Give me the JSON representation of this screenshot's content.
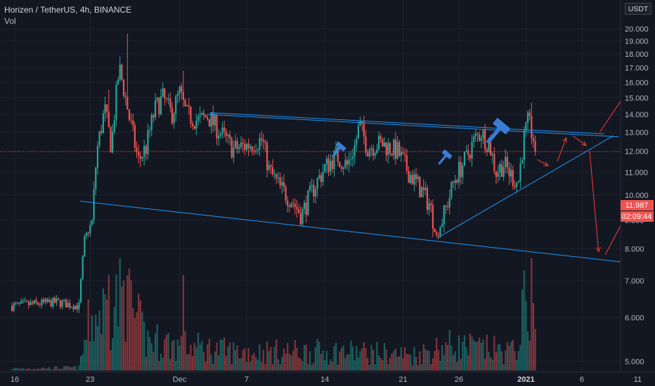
{
  "header": {
    "title": "Horizen / TetherUS, 4h, BINANCE",
    "volume_label": "Vol",
    "currency_button": "USDT"
  },
  "price_tags": {
    "last_price": "11.987",
    "countdown": "02:09:44"
  },
  "colors": {
    "up": "#26a69a",
    "down": "#ef5350",
    "trendline": "#2196f3",
    "arrow": "#e53935",
    "hammer": "#3a7dd6"
  },
  "annotations": {
    "hammer_icons": [
      "hammer-icon",
      "hammer-icon",
      "hammer-icon"
    ]
  },
  "chart_data": {
    "type": "candlestick",
    "title": "Horizen / TetherUS, 4h, BINANCE",
    "ylim": [
      4.6,
      21.3
    ],
    "y_ticks": [
      5,
      6,
      7,
      8,
      9,
      10,
      11,
      12,
      13,
      14,
      15,
      16,
      17,
      18,
      19,
      20
    ],
    "y_tick_labels": [
      "5.000",
      "6.000",
      "7.000",
      "8.000",
      "9.000",
      "10.000",
      "11.000",
      "12.000",
      "13.000",
      "14.000",
      "15.000",
      "16.000",
      "17.000",
      "18.000",
      "19.000",
      "20.000"
    ],
    "x_ticks": [
      {
        "label": "16",
        "day": 0
      },
      {
        "label": "23",
        "day": 7
      },
      {
        "label": "Dec",
        "day": 15
      },
      {
        "label": "7",
        "day": 21
      },
      {
        "label": "14",
        "day": 28
      },
      {
        "label": "21",
        "day": 35
      },
      {
        "label": "26",
        "day": 40
      },
      {
        "label": "2021",
        "day": 46,
        "bold": true
      },
      {
        "label": "6",
        "day": 51
      },
      {
        "label": "11",
        "day": 56
      }
    ],
    "price_waypoints": [
      {
        "day": 0,
        "price": 6.3
      },
      {
        "day": 4,
        "price": 6.4
      },
      {
        "day": 6,
        "price": 6.3
      },
      {
        "day": 6.5,
        "price": 8.3
      },
      {
        "day": 7.2,
        "price": 9.0
      },
      {
        "day": 7.6,
        "price": 12.0
      },
      {
        "day": 8.3,
        "price": 14.3
      },
      {
        "day": 8.9,
        "price": 12.2
      },
      {
        "day": 9.6,
        "price": 17.0
      },
      {
        "day": 10.5,
        "price": 13.8
      },
      {
        "day": 11.3,
        "price": 11.5
      },
      {
        "day": 12.0,
        "price": 12.2
      },
      {
        "day": 12.8,
        "price": 14.3
      },
      {
        "day": 13.5,
        "price": 15.0
      },
      {
        "day": 14.3,
        "price": 14.0
      },
      {
        "day": 15.0,
        "price": 15.3
      },
      {
        "day": 15.6,
        "price": 14.0
      },
      {
        "day": 16.7,
        "price": 13.6
      },
      {
        "day": 17.5,
        "price": 13.9
      },
      {
        "day": 18.6,
        "price": 13.0
      },
      {
        "day": 19.8,
        "price": 12.1
      },
      {
        "day": 21.0,
        "price": 12.3
      },
      {
        "day": 22.4,
        "price": 12.6
      },
      {
        "day": 23.0,
        "price": 11.1
      },
      {
        "day": 24.0,
        "price": 10.3
      },
      {
        "day": 25.0,
        "price": 9.8
      },
      {
        "day": 25.9,
        "price": 9.2
      },
      {
        "day": 27.0,
        "price": 10.3
      },
      {
        "day": 28.0,
        "price": 11.2
      },
      {
        "day": 29.0,
        "price": 11.8
      },
      {
        "day": 30.0,
        "price": 11.3
      },
      {
        "day": 30.7,
        "price": 12.3
      },
      {
        "day": 31.1,
        "price": 13.4
      },
      {
        "day": 31.8,
        "price": 12.2
      },
      {
        "day": 33.0,
        "price": 12.4
      },
      {
        "day": 34.5,
        "price": 12.0
      },
      {
        "day": 35.5,
        "price": 11.0
      },
      {
        "day": 36.5,
        "price": 10.3
      },
      {
        "day": 37.4,
        "price": 9.6
      },
      {
        "day": 38.0,
        "price": 8.4
      },
      {
        "day": 38.8,
        "price": 9.4
      },
      {
        "day": 39.7,
        "price": 10.8
      },
      {
        "day": 40.6,
        "price": 11.6
      },
      {
        "day": 41.4,
        "price": 12.6
      },
      {
        "day": 42.0,
        "price": 13.0
      },
      {
        "day": 42.8,
        "price": 12.2
      },
      {
        "day": 43.3,
        "price": 11.0
      },
      {
        "day": 44.0,
        "price": 11.4
      },
      {
        "day": 44.6,
        "price": 10.9
      },
      {
        "day": 45.3,
        "price": 10.5
      },
      {
        "day": 45.8,
        "price": 12.6
      },
      {
        "day": 46.2,
        "price": 13.6
      },
      {
        "day": 46.7,
        "price": 12.6
      },
      {
        "day": 46.9,
        "price": 11.987
      }
    ],
    "spikes": [
      {
        "day": 8.6,
        "high": 15.5
      },
      {
        "day": 10.3,
        "high": 19.6
      },
      {
        "day": 15.3,
        "high": 16.8
      },
      {
        "day": 46.5,
        "high": 14.7
      }
    ],
    "trendlines": [
      {
        "from": {
          "day": 17.5,
          "price": 14.0
        },
        "to": {
          "day": 54.3,
          "price": 12.75
        }
      },
      {
        "from": {
          "day": 6.1,
          "price": 9.75
        },
        "to": {
          "day": 55.0,
          "price": 7.55
        }
      },
      {
        "from": {
          "day": 38.0,
          "price": 8.35
        },
        "to": {
          "day": 53.8,
          "price": 12.8
        }
      },
      {
        "from": {
          "day": 17.7,
          "price": 14.1
        },
        "to": {
          "day": 53.0,
          "price": 12.9
        }
      }
    ],
    "projection_arrows": [
      {
        "from": {
          "day": 47.0,
          "price": 11.6
        },
        "to": {
          "day": 48.0,
          "price": 11.3
        }
      },
      {
        "from": {
          "day": 48.8,
          "price": 11.5
        },
        "to": {
          "day": 49.6,
          "price": 12.7
        }
      },
      {
        "from": {
          "day": 50.2,
          "price": 12.8
        },
        "to": {
          "day": 51.4,
          "price": 12.3
        }
      },
      {
        "from": {
          "day": 51.7,
          "price": 12.0
        },
        "to": {
          "day": 52.5,
          "price": 7.9
        }
      },
      {
        "from": {
          "day": 53.1,
          "price": 7.8
        },
        "to": {
          "day": 56.0,
          "price": 10.1
        }
      },
      {
        "from": {
          "day": 52.6,
          "price": 13.0
        },
        "to": {
          "day": 57.0,
          "price": 17.6
        }
      }
    ],
    "volume_max": 18,
    "volume_waypoints": [
      {
        "day": 0,
        "vol": 0.3
      },
      {
        "day": 6,
        "vol": 0.5
      },
      {
        "day": 7,
        "vol": 8
      },
      {
        "day": 10,
        "vol": 12
      },
      {
        "day": 12,
        "vol": 5
      },
      {
        "day": 15,
        "vol": 4
      },
      {
        "day": 20,
        "vol": 3
      },
      {
        "day": 25,
        "vol": 3
      },
      {
        "day": 30,
        "vol": 3
      },
      {
        "day": 36,
        "vol": 2.5
      },
      {
        "day": 39,
        "vol": 4
      },
      {
        "day": 45,
        "vol": 3
      },
      {
        "day": 46.5,
        "vol": 15
      },
      {
        "day": 46.9,
        "vol": 5
      }
    ]
  }
}
